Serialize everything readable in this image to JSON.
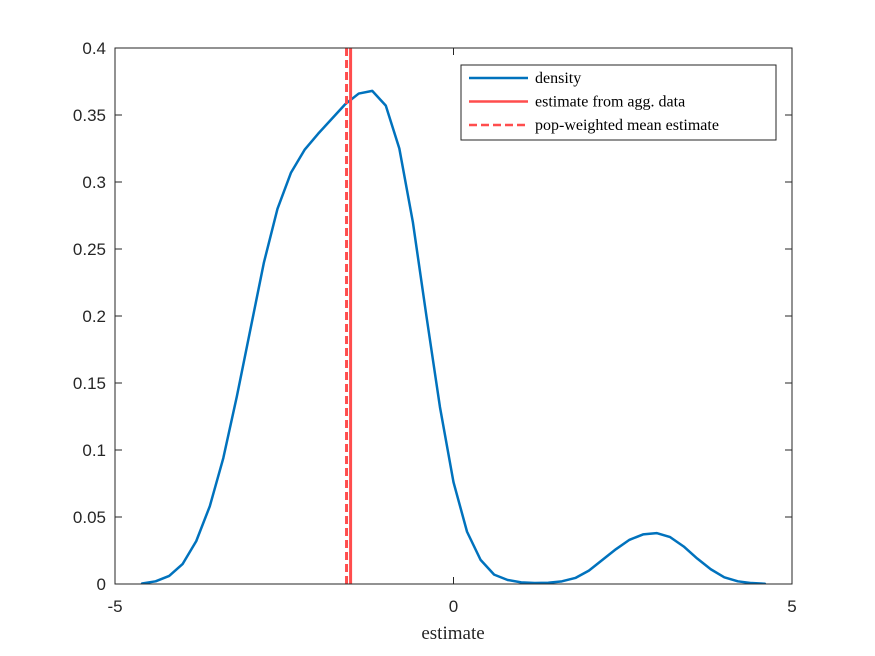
{
  "chart_data": {
    "type": "line",
    "xlabel": "estimate",
    "ylabel": "",
    "title": "",
    "xlim": [
      -5,
      5
    ],
    "ylim": [
      0,
      0.4
    ],
    "xticks": [
      -5,
      0,
      5
    ],
    "xtick_labels": [
      "-5",
      "0",
      "5"
    ],
    "yticks": [
      0,
      0.05,
      0.1,
      0.15,
      0.2,
      0.25,
      0.3,
      0.35,
      0.4
    ],
    "ytick_labels": [
      "0",
      "0.05",
      "0.1",
      "0.15",
      "0.2",
      "0.25",
      "0.3",
      "0.35",
      "0.4"
    ],
    "grid": false,
    "legend_position": "top-right",
    "series": [
      {
        "name": "density",
        "color": "#0072BD",
        "style": "solid",
        "x": [
          -4.6,
          -4.4,
          -4.2,
          -4.0,
          -3.8,
          -3.6,
          -3.4,
          -3.2,
          -3.0,
          -2.8,
          -2.6,
          -2.4,
          -2.2,
          -2.0,
          -1.8,
          -1.6,
          -1.4,
          -1.2,
          -1.0,
          -0.8,
          -0.6,
          -0.4,
          -0.2,
          0.0,
          0.2,
          0.4,
          0.6,
          0.8,
          1.0,
          1.2,
          1.4,
          1.6,
          1.8,
          2.0,
          2.2,
          2.4,
          2.6,
          2.8,
          3.0,
          3.2,
          3.4,
          3.6,
          3.8,
          4.0,
          4.2,
          4.4,
          4.6
        ],
        "y": [
          0.0004,
          0.002,
          0.006,
          0.015,
          0.032,
          0.058,
          0.094,
          0.14,
          0.19,
          0.24,
          0.28,
          0.307,
          0.324,
          0.336,
          0.347,
          0.358,
          0.366,
          0.368,
          0.357,
          0.325,
          0.27,
          0.2,
          0.132,
          0.076,
          0.039,
          0.018,
          0.007,
          0.003,
          0.0012,
          0.0007,
          0.0009,
          0.002,
          0.0045,
          0.01,
          0.018,
          0.026,
          0.033,
          0.037,
          0.038,
          0.035,
          0.028,
          0.019,
          0.011,
          0.005,
          0.002,
          0.0007,
          0.0002
        ]
      },
      {
        "name": "estimate from agg. data",
        "color": "#FF4D4D",
        "style": "solid",
        "vline": -1.52
      },
      {
        "name": "pop-weighted mean estimate",
        "color": "#FF4D4D",
        "style": "dashed",
        "vline": -1.58
      }
    ]
  }
}
